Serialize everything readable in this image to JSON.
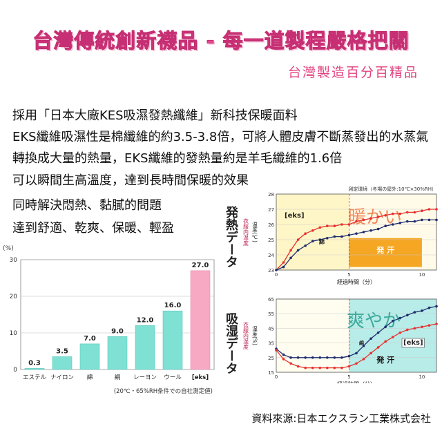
{
  "header": {
    "title": "台灣傳統創新襪品 - 每一道製程嚴格把關",
    "subtitle": "台灣製造百分百精品"
  },
  "body_lines": [
    "採用「日本大廠KES吸濕發熱纖維」新科技保暖面料",
    "EKS纖維吸濕性是棉纖維的約3.5-3.8倍，可將人體皮膚不斷蒸發出的水蒸氣",
    "轉換成大量的熱量，EKS纖維的發熱量約是羊毛纖維的1.6倍",
    "可以瞬間生高溫度，達到長時間保暖的效果",
    "同時解決悶熱、黏膩的問題",
    "達到舒適、乾爽、保暖、輕盈"
  ],
  "source": "資料來源:日本エクスラン工業株式会社",
  "colors": {
    "accent": "#e8468f",
    "bar": "#7fe0d4",
    "bar_eks": "#f7a9c4",
    "red_line": "#e8302e",
    "navy_line": "#1f2d6e",
    "warm_bg": "#fff6c8",
    "orange_band": "#f5a623",
    "teal_band": "#b8ece8"
  },
  "chart_data": [
    {
      "type": "bar",
      "title": "",
      "ylabel": "(%)",
      "ylim": [
        0,
        30
      ],
      "yticks": [
        0,
        10,
        20,
        30
      ],
      "categories": [
        "エステル",
        "ナイロン",
        "綿",
        "絹",
        "レーヨン",
        "ウール",
        "[eks]"
      ],
      "values": [
        0.3,
        3.5,
        7.0,
        9.0,
        12.0,
        16.0,
        27.0
      ],
      "value_labels": [
        "0.3",
        "3.5",
        "7.0",
        "9.0",
        "12.0",
        "16.0",
        "27.0"
      ],
      "note": "(20℃・65%RH条件での自社測定値)"
    },
    {
      "type": "line",
      "side_label": "発熱データ",
      "condition": "測定環境（冬場の屋外:10℃×30%RH）",
      "ylabel": "衣服内温度",
      "yunit": "温度(℃)",
      "xlabel": "経過時間（分）",
      "xlim": [
        0,
        11
      ],
      "ylim": [
        23,
        28
      ],
      "xticks": [
        0,
        5,
        10
      ],
      "yticks": [
        23,
        24,
        25,
        26,
        27,
        28
      ],
      "band_label": "発 汗",
      "overlay_text": "暖かい",
      "series": [
        {
          "name": "[eks]",
          "x": [
            0,
            0.5,
            1,
            1.5,
            2,
            2.5,
            3,
            3.5,
            4,
            4.5,
            5,
            5.5,
            6,
            6.5,
            7,
            7.5,
            8,
            8.5,
            9,
            9.5,
            10,
            10.5,
            11
          ],
          "y": [
            23.0,
            23.5,
            24.3,
            25.0,
            25.4,
            25.6,
            25.8,
            25.9,
            25.9,
            26.0,
            26.0,
            26.2,
            26.3,
            26.4,
            26.5,
            26.6,
            26.7,
            26.7,
            26.8,
            26.8,
            26.9,
            27.0,
            27.0
          ]
        },
        {
          "name": "綿",
          "x": [
            0,
            0.5,
            1,
            1.5,
            2,
            2.5,
            3,
            3.5,
            4,
            4.5,
            5,
            5.5,
            6,
            6.5,
            7,
            7.5,
            8,
            8.5,
            9,
            9.5,
            10,
            10.5,
            11
          ],
          "y": [
            23.0,
            23.2,
            23.8,
            24.3,
            24.6,
            24.9,
            25.0,
            25.1,
            25.2,
            25.2,
            25.3,
            25.4,
            25.5,
            25.6,
            25.7,
            25.9,
            26.0,
            26.1,
            26.2,
            26.2,
            26.3,
            26.3,
            26.3
          ]
        }
      ]
    },
    {
      "type": "line",
      "side_label": "吸湿データ",
      "ylabel": "衣服内湿度",
      "yunit": "湿度(%)",
      "xlabel": "経過時間（分）",
      "xlim": [
        0,
        11
      ],
      "ylim": [
        15,
        65
      ],
      "xticks": [
        0,
        5,
        10
      ],
      "yticks": [
        15,
        25,
        35,
        45,
        55,
        65
      ],
      "band_label": "発 汗",
      "overlay_text": "爽やか",
      "series": [
        {
          "name": "綿",
          "x": [
            0,
            0.5,
            1,
            1.5,
            2,
            2.5,
            3,
            3.5,
            4,
            4.5,
            5,
            5.5,
            6,
            6.5,
            7,
            7.5,
            8,
            8.5,
            9,
            9.5,
            10,
            10.5,
            11
          ],
          "y": [
            31,
            27,
            25,
            25,
            25,
            25,
            25,
            25,
            25,
            25,
            26,
            28,
            33,
            38,
            42,
            46,
            50,
            52,
            54,
            56,
            57,
            59,
            60
          ]
        },
        {
          "name": "[eks]",
          "x": [
            0,
            0.5,
            1,
            1.5,
            2,
            2.5,
            3,
            3.5,
            4,
            4.5,
            5,
            5.5,
            6,
            6.5,
            7,
            7.5,
            8,
            8.5,
            9,
            9.5,
            10,
            10.5,
            11
          ],
          "y": [
            30,
            24,
            21,
            19,
            18,
            18,
            18,
            18,
            18,
            18,
            19,
            21,
            24,
            28,
            32,
            36,
            39,
            42,
            44,
            45,
            46,
            47,
            48
          ]
        }
      ]
    }
  ]
}
